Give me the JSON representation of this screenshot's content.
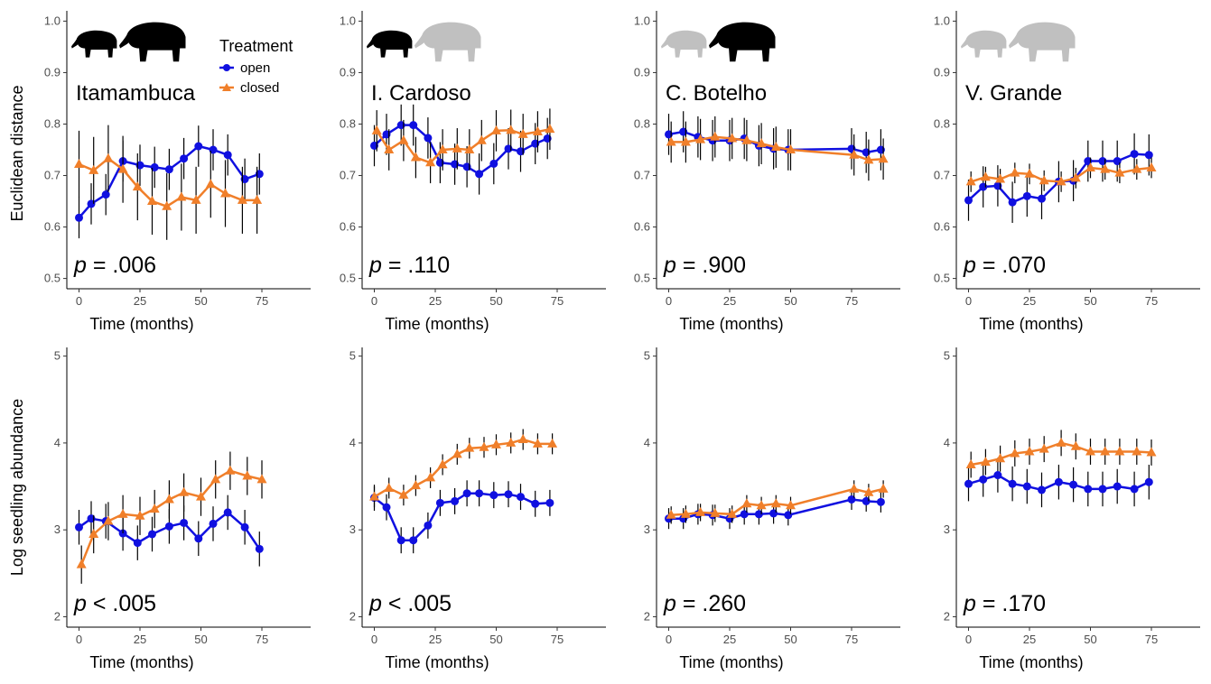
{
  "figure": {
    "legend": {
      "title": "Treatment",
      "items": [
        {
          "label": "open",
          "color": "#1010e0",
          "marker": "circle"
        },
        {
          "label": "closed",
          "color": "#f07f2a",
          "marker": "triangle"
        }
      ]
    },
    "row_ylabels": [
      "Euclidean distance",
      "Log seedling abundance"
    ],
    "colors": {
      "open": "#1010e0",
      "closed": "#f07f2a",
      "silhouette_dark": "#000000",
      "silhouette_light": "#c0c0c0",
      "errorbar": "#000000"
    }
  },
  "chart_data": [
    {
      "type": "line",
      "panel": "Itamambuca",
      "title": "Itamambuca",
      "xlabel": "Time (months)",
      "ylabel": "Euclidean distance",
      "xlim": [
        -5,
        95
      ],
      "ylim": [
        0.48,
        1.02
      ],
      "xticks": [
        0,
        25,
        50,
        75
      ],
      "yticks": [
        0.5,
        0.6,
        0.7,
        0.8,
        0.9,
        1.0
      ],
      "ytick_labels": [
        "0.5",
        "0.6",
        "0.7",
        "0.8",
        "0.9",
        "1.0"
      ],
      "p_value": ".006",
      "p_relation": "=",
      "silhouettes": {
        "small": "dark",
        "large": "dark"
      },
      "series": [
        {
          "name": "open",
          "x": [
            0,
            5,
            11,
            18,
            25,
            31,
            37,
            43,
            49,
            55,
            61,
            68,
            74
          ],
          "y": [
            0.618,
            0.645,
            0.663,
            0.728,
            0.72,
            0.716,
            0.712,
            0.733,
            0.757,
            0.75,
            0.74,
            0.693,
            0.703
          ],
          "err": [
            0.04,
            0.04,
            0.04,
            0.04,
            0.04,
            0.04,
            0.04,
            0.04,
            0.04,
            0.04,
            0.04,
            0.04,
            0.04
          ]
        },
        {
          "name": "closed",
          "x": [
            0,
            6,
            12,
            18,
            24,
            30,
            36,
            42,
            48,
            54,
            60,
            67,
            73
          ],
          "y": [
            0.722,
            0.71,
            0.733,
            0.712,
            0.678,
            0.65,
            0.64,
            0.658,
            0.652,
            0.683,
            0.665,
            0.652,
            0.652
          ],
          "err": [
            0.065,
            0.065,
            0.065,
            0.065,
            0.065,
            0.065,
            0.065,
            0.065,
            0.065,
            0.065,
            0.065,
            0.065,
            0.065
          ]
        }
      ]
    },
    {
      "type": "line",
      "panel": "I. Cardoso",
      "title": "I. Cardoso",
      "xlabel": "Time (months)",
      "ylabel": "",
      "xlim": [
        -5,
        95
      ],
      "ylim": [
        0.48,
        1.02
      ],
      "xticks": [
        0,
        25,
        50,
        75
      ],
      "yticks": [
        0.5,
        0.6,
        0.7,
        0.8,
        0.9,
        1.0
      ],
      "ytick_labels": [
        "0.5",
        "0.6",
        "0.7",
        "0.8",
        "0.9",
        "1.0"
      ],
      "p_value": ".110",
      "p_relation": "=",
      "silhouettes": {
        "small": "dark",
        "large": "light"
      },
      "series": [
        {
          "name": "open",
          "x": [
            0,
            5,
            11,
            16,
            22,
            27,
            33,
            38,
            43,
            49,
            55,
            60,
            66,
            71
          ],
          "y": [
            0.758,
            0.78,
            0.798,
            0.798,
            0.773,
            0.725,
            0.722,
            0.717,
            0.703,
            0.723,
            0.752,
            0.747,
            0.762,
            0.772
          ],
          "err": [
            0.04,
            0.04,
            0.04,
            0.04,
            0.04,
            0.04,
            0.04,
            0.04,
            0.04,
            0.04,
            0.04,
            0.04,
            0.04,
            0.04
          ]
        },
        {
          "name": "closed",
          "x": [
            1,
            6,
            12,
            17,
            23,
            28,
            34,
            39,
            44,
            50,
            56,
            61,
            67,
            72
          ],
          "y": [
            0.787,
            0.75,
            0.768,
            0.735,
            0.725,
            0.75,
            0.752,
            0.75,
            0.768,
            0.787,
            0.788,
            0.78,
            0.785,
            0.79
          ],
          "err": [
            0.04,
            0.04,
            0.04,
            0.04,
            0.04,
            0.04,
            0.04,
            0.04,
            0.04,
            0.04,
            0.04,
            0.04,
            0.04,
            0.04
          ]
        }
      ]
    },
    {
      "type": "line",
      "panel": "C. Botelho",
      "title": "C. Botelho",
      "xlabel": "Time (months)",
      "ylabel": "",
      "xlim": [
        -5,
        95
      ],
      "ylim": [
        0.48,
        1.02
      ],
      "xticks": [
        0,
        25,
        50,
        75
      ],
      "yticks": [
        0.5,
        0.6,
        0.7,
        0.8,
        0.9,
        1.0
      ],
      "ytick_labels": [
        "0.5",
        "0.6",
        "0.7",
        "0.8",
        "0.9",
        "1.0"
      ],
      "p_value": ".900",
      "p_relation": "=",
      "silhouettes": {
        "small": "light",
        "large": "dark"
      },
      "series": [
        {
          "name": "open",
          "x": [
            0,
            6,
            12,
            18,
            25,
            31,
            37,
            43,
            49,
            75,
            81,
            87
          ],
          "y": [
            0.78,
            0.785,
            0.775,
            0.768,
            0.768,
            0.772,
            0.758,
            0.752,
            0.75,
            0.752,
            0.745,
            0.75
          ],
          "err": [
            0.04,
            0.04,
            0.04,
            0.04,
            0.04,
            0.04,
            0.04,
            0.04,
            0.04,
            0.04,
            0.04,
            0.04
          ]
        },
        {
          "name": "closed",
          "x": [
            1,
            7,
            13,
            19,
            26,
            32,
            38,
            44,
            50,
            76,
            82,
            88
          ],
          "y": [
            0.765,
            0.765,
            0.77,
            0.775,
            0.772,
            0.768,
            0.762,
            0.755,
            0.75,
            0.74,
            0.73,
            0.732
          ],
          "err": [
            0.04,
            0.04,
            0.04,
            0.04,
            0.04,
            0.04,
            0.04,
            0.04,
            0.04,
            0.04,
            0.04,
            0.04
          ]
        }
      ]
    },
    {
      "type": "line",
      "panel": "V. Grande",
      "title": "V. Grande",
      "xlabel": "Time (months)",
      "ylabel": "",
      "xlim": [
        -5,
        95
      ],
      "ylim": [
        0.48,
        1.02
      ],
      "xticks": [
        0,
        25,
        50,
        75
      ],
      "yticks": [
        0.5,
        0.6,
        0.7,
        0.8,
        0.9,
        1.0
      ],
      "ytick_labels": [
        "0.5",
        "0.6",
        "0.7",
        "0.8",
        "0.9",
        "1.0"
      ],
      "p_value": ".070",
      "p_relation": "=",
      "silhouettes": {
        "small": "light",
        "large": "light"
      },
      "series": [
        {
          "name": "open",
          "x": [
            0,
            6,
            12,
            18,
            24,
            30,
            37,
            43,
            49,
            55,
            61,
            68,
            74
          ],
          "y": [
            0.652,
            0.678,
            0.68,
            0.648,
            0.66,
            0.655,
            0.688,
            0.69,
            0.728,
            0.728,
            0.728,
            0.742,
            0.74
          ],
          "err": [
            0.04,
            0.04,
            0.04,
            0.04,
            0.04,
            0.04,
            0.04,
            0.04,
            0.04,
            0.04,
            0.04,
            0.04,
            0.04
          ]
        },
        {
          "name": "closed",
          "x": [
            1,
            7,
            13,
            19,
            25,
            31,
            38,
            44,
            50,
            56,
            62,
            69,
            75
          ],
          "y": [
            0.688,
            0.697,
            0.693,
            0.705,
            0.703,
            0.69,
            0.688,
            0.695,
            0.715,
            0.712,
            0.705,
            0.712,
            0.715
          ],
          "err": [
            0.02,
            0.02,
            0.02,
            0.02,
            0.02,
            0.02,
            0.02,
            0.02,
            0.02,
            0.02,
            0.02,
            0.02,
            0.02
          ]
        }
      ]
    },
    {
      "type": "line",
      "panel": "Itamambuca",
      "xlabel": "Time (months)",
      "ylabel": "Log seedling abundance",
      "xlim": [
        -5,
        95
      ],
      "ylim": [
        1.88,
        5.1
      ],
      "xticks": [
        0,
        25,
        50,
        75
      ],
      "yticks": [
        2,
        3,
        4,
        5
      ],
      "ytick_labels": [
        "2",
        "3",
        "4",
        "5"
      ],
      "p_value": ".005",
      "p_relation": "<",
      "series": [
        {
          "name": "open",
          "x": [
            0,
            5,
            11,
            18,
            24,
            30,
            37,
            43,
            49,
            55,
            61,
            68,
            74
          ],
          "y": [
            3.03,
            3.13,
            3.1,
            2.96,
            2.85,
            2.95,
            3.04,
            3.08,
            2.9,
            3.07,
            3.2,
            3.03,
            2.78
          ],
          "err": [
            0.2,
            0.2,
            0.2,
            0.2,
            0.2,
            0.2,
            0.2,
            0.2,
            0.2,
            0.2,
            0.2,
            0.2,
            0.2
          ]
        },
        {
          "name": "closed",
          "x": [
            1,
            6,
            12,
            18,
            25,
            31,
            37,
            43,
            50,
            56,
            62,
            69,
            75
          ],
          "y": [
            2.6,
            2.95,
            3.1,
            3.18,
            3.16,
            3.24,
            3.35,
            3.43,
            3.38,
            3.58,
            3.68,
            3.62,
            3.58
          ],
          "err": [
            0.22,
            0.22,
            0.22,
            0.22,
            0.22,
            0.22,
            0.22,
            0.22,
            0.22,
            0.22,
            0.22,
            0.22,
            0.22
          ]
        }
      ]
    },
    {
      "type": "line",
      "panel": "I. Cardoso",
      "xlabel": "Time (months)",
      "ylabel": "",
      "xlim": [
        -5,
        95
      ],
      "ylim": [
        1.88,
        5.1
      ],
      "xticks": [
        0,
        25,
        50,
        75
      ],
      "yticks": [
        2,
        3,
        4,
        5
      ],
      "ytick_labels": [
        "2",
        "3",
        "4",
        "5"
      ],
      "p_value": ".005",
      "p_relation": "<",
      "series": [
        {
          "name": "open",
          "x": [
            0,
            5,
            11,
            16,
            22,
            27,
            33,
            38,
            43,
            49,
            55,
            60,
            66,
            72
          ],
          "y": [
            3.37,
            3.26,
            2.88,
            2.88,
            3.05,
            3.31,
            3.33,
            3.42,
            3.42,
            3.4,
            3.41,
            3.38,
            3.3,
            3.31
          ],
          "err": [
            0.15,
            0.15,
            0.15,
            0.15,
            0.15,
            0.15,
            0.15,
            0.15,
            0.15,
            0.15,
            0.15,
            0.15,
            0.15,
            0.15
          ]
        },
        {
          "name": "closed",
          "x": [
            0,
            6,
            12,
            17,
            23,
            28,
            34,
            39,
            45,
            50,
            56,
            61,
            67,
            73
          ],
          "y": [
            3.38,
            3.48,
            3.4,
            3.51,
            3.6,
            3.75,
            3.87,
            3.94,
            3.95,
            3.98,
            4.0,
            4.04,
            3.99,
            3.99
          ],
          "err": [
            0.12,
            0.12,
            0.12,
            0.12,
            0.12,
            0.12,
            0.12,
            0.12,
            0.12,
            0.12,
            0.12,
            0.12,
            0.12,
            0.12
          ]
        }
      ]
    },
    {
      "type": "line",
      "panel": "C. Botelho",
      "xlabel": "Time (months)",
      "ylabel": "",
      "xlim": [
        -5,
        95
      ],
      "ylim": [
        1.88,
        5.1
      ],
      "xticks": [
        0,
        25,
        50,
        75
      ],
      "yticks": [
        2,
        3,
        4,
        5
      ],
      "ytick_labels": [
        "2",
        "3",
        "4",
        "5"
      ],
      "p_value": ".260",
      "p_relation": "=",
      "series": [
        {
          "name": "open",
          "x": [
            0,
            6,
            12,
            18,
            25,
            31,
            37,
            43,
            49,
            75,
            81,
            87
          ],
          "y": [
            3.13,
            3.13,
            3.18,
            3.17,
            3.13,
            3.18,
            3.18,
            3.19,
            3.17,
            3.35,
            3.33,
            3.32
          ],
          "err": [
            0.12,
            0.12,
            0.12,
            0.12,
            0.12,
            0.12,
            0.12,
            0.12,
            0.12,
            0.12,
            0.12,
            0.12
          ]
        },
        {
          "name": "closed",
          "x": [
            1,
            7,
            13,
            19,
            26,
            32,
            38,
            44,
            50,
            76,
            82,
            88
          ],
          "y": [
            3.17,
            3.18,
            3.2,
            3.19,
            3.18,
            3.3,
            3.28,
            3.3,
            3.28,
            3.47,
            3.43,
            3.47
          ],
          "err": [
            0.1,
            0.1,
            0.1,
            0.1,
            0.1,
            0.1,
            0.1,
            0.1,
            0.1,
            0.1,
            0.1,
            0.1
          ]
        }
      ]
    },
    {
      "type": "line",
      "panel": "V. Grande",
      "xlabel": "Time (months)",
      "ylabel": "",
      "xlim": [
        -5,
        95
      ],
      "ylim": [
        1.88,
        5.1
      ],
      "xticks": [
        0,
        25,
        50,
        75
      ],
      "yticks": [
        2,
        3,
        4,
        5
      ],
      "ytick_labels": [
        "2",
        "3",
        "4",
        "5"
      ],
      "p_value": ".170",
      "p_relation": "=",
      "series": [
        {
          "name": "open",
          "x": [
            0,
            6,
            12,
            18,
            24,
            30,
            37,
            43,
            49,
            55,
            61,
            68,
            74
          ],
          "y": [
            3.53,
            3.58,
            3.63,
            3.53,
            3.5,
            3.46,
            3.55,
            3.52,
            3.47,
            3.47,
            3.5,
            3.47,
            3.55
          ],
          "err": [
            0.2,
            0.2,
            0.2,
            0.2,
            0.2,
            0.2,
            0.2,
            0.2,
            0.2,
            0.2,
            0.2,
            0.2,
            0.2
          ]
        },
        {
          "name": "closed",
          "x": [
            1,
            7,
            13,
            19,
            25,
            31,
            38,
            44,
            50,
            56,
            62,
            69,
            75
          ],
          "y": [
            3.75,
            3.78,
            3.82,
            3.88,
            3.9,
            3.93,
            4.0,
            3.96,
            3.9,
            3.9,
            3.9,
            3.9,
            3.89
          ],
          "err": [
            0.15,
            0.15,
            0.15,
            0.15,
            0.15,
            0.15,
            0.15,
            0.15,
            0.15,
            0.15,
            0.15,
            0.15,
            0.15
          ]
        }
      ]
    }
  ]
}
